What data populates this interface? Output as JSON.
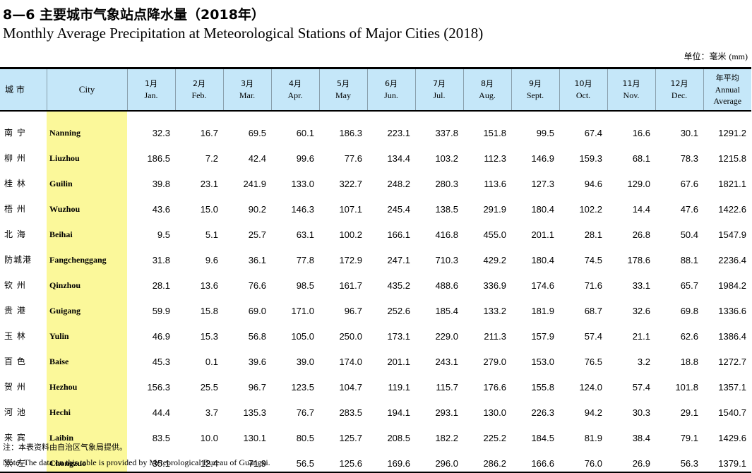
{
  "title_cn": "8—6  主要城市气象站点降水量（2018年）",
  "title_en": "Monthly Average Precipitation at Meteorological Stations of Major Cities (2018)",
  "unit_cn": "单位：毫米",
  "unit_en": "(mm)",
  "header": {
    "city_cn": "城  市",
    "city_en": "City",
    "months": [
      {
        "cn": "1月",
        "en": "Jan."
      },
      {
        "cn": "2月",
        "en": "Feb."
      },
      {
        "cn": "3月",
        "en": "Mar."
      },
      {
        "cn": "4月",
        "en": "Apr."
      },
      {
        "cn": "5月",
        "en": "May"
      },
      {
        "cn": "6月",
        "en": "Jun."
      },
      {
        "cn": "7月",
        "en": "Jul."
      },
      {
        "cn": "8月",
        "en": "Aug."
      },
      {
        "cn": "9月",
        "en": "Sept."
      },
      {
        "cn": "10月",
        "en": "Oct."
      },
      {
        "cn": "11月",
        "en": "Nov."
      },
      {
        "cn": "12月",
        "en": "Dec."
      }
    ],
    "avg_cn": "年平均",
    "avg_en1": "Annual",
    "avg_en2": "Average"
  },
  "rows": [
    {
      "cn": "南  宁",
      "en": "Nanning",
      "values": [
        "32.3",
        "16.7",
        "69.5",
        "60.1",
        "186.3",
        "223.1",
        "337.8",
        "151.8",
        "99.5",
        "67.4",
        "16.6",
        "30.1",
        "1291.2"
      ]
    },
    {
      "cn": "柳  州",
      "en": "Liuzhou",
      "values": [
        "186.5",
        "7.2",
        "42.4",
        "99.6",
        "77.6",
        "134.4",
        "103.2",
        "112.3",
        "146.9",
        "159.3",
        "68.1",
        "78.3",
        "1215.8"
      ]
    },
    {
      "cn": "桂  林",
      "en": "Guilin",
      "values": [
        "39.8",
        "23.1",
        "241.9",
        "133.0",
        "322.7",
        "248.2",
        "280.3",
        "113.6",
        "127.3",
        "94.6",
        "129.0",
        "67.6",
        "1821.1"
      ]
    },
    {
      "cn": "梧  州",
      "en": "Wuzhou",
      "values": [
        "43.6",
        "15.0",
        "90.2",
        "146.3",
        "107.1",
        "245.4",
        "138.5",
        "291.9",
        "180.4",
        "102.2",
        "14.4",
        "47.6",
        "1422.6"
      ]
    },
    {
      "cn": "北  海",
      "en": "Beihai",
      "values": [
        "9.5",
        "5.1",
        "25.7",
        "63.1",
        "100.2",
        "166.1",
        "416.8",
        "455.0",
        "201.1",
        "28.1",
        "26.8",
        "50.4",
        "1547.9"
      ]
    },
    {
      "cn": "防城港",
      "en": "Fangchenggang",
      "values": [
        "31.8",
        "9.6",
        "36.1",
        "77.8",
        "172.9",
        "247.1",
        "710.3",
        "429.2",
        "180.4",
        "74.5",
        "178.6",
        "88.1",
        "2236.4"
      ]
    },
    {
      "cn": "钦  州",
      "en": "Qinzhou",
      "values": [
        "28.1",
        "13.6",
        "76.6",
        "98.5",
        "161.7",
        "435.2",
        "488.6",
        "336.9",
        "174.6",
        "71.6",
        "33.1",
        "65.7",
        "1984.2"
      ]
    },
    {
      "cn": "贵  港",
      "en": "Guigang",
      "values": [
        "59.9",
        "15.8",
        "69.0",
        "171.0",
        "96.7",
        "252.6",
        "185.4",
        "133.2",
        "181.9",
        "68.7",
        "32.6",
        "69.8",
        "1336.6"
      ]
    },
    {
      "cn": "玉  林",
      "en": "Yulin",
      "values": [
        "46.9",
        "15.3",
        "56.8",
        "105.0",
        "250.0",
        "173.1",
        "229.0",
        "211.3",
        "157.9",
        "57.4",
        "21.1",
        "62.6",
        "1386.4"
      ]
    },
    {
      "cn": "百  色",
      "en": "Baise",
      "values": [
        "45.3",
        "0.1",
        "39.6",
        "39.0",
        "174.0",
        "201.1",
        "243.1",
        "279.0",
        "153.0",
        "76.5",
        "3.2",
        "18.8",
        "1272.7"
      ]
    },
    {
      "cn": "贺  州",
      "en": "Hezhou",
      "values": [
        "156.3",
        "25.5",
        "96.7",
        "123.5",
        "104.7",
        "119.1",
        "115.7",
        "176.6",
        "155.8",
        "124.0",
        "57.4",
        "101.8",
        "1357.1"
      ]
    },
    {
      "cn": "河  池",
      "en": "Hechi",
      "values": [
        "44.4",
        "3.7",
        "135.3",
        "76.7",
        "283.5",
        "194.1",
        "293.1",
        "130.0",
        "226.3",
        "94.2",
        "30.3",
        "29.1",
        "1540.7"
      ]
    },
    {
      "cn": "来  宾",
      "en": "Laibin",
      "values": [
        "83.5",
        "10.0",
        "130.1",
        "80.5",
        "125.7",
        "208.5",
        "182.2",
        "225.2",
        "184.5",
        "81.9",
        "38.4",
        "79.1",
        "1429.6"
      ]
    },
    {
      "cn": "崇  左",
      "en": "Chongzuo",
      "values": [
        "35.1",
        "12.4",
        "71.9",
        "56.5",
        "125.6",
        "169.6",
        "296.0",
        "286.2",
        "166.6",
        "76.0",
        "26.9",
        "56.3",
        "1379.1"
      ]
    }
  ],
  "note_cn": "注：本表资料由自治区气象局提供。",
  "note_en": "Note: The data on this table is provided by Meteorological Bureau of Guangxi."
}
